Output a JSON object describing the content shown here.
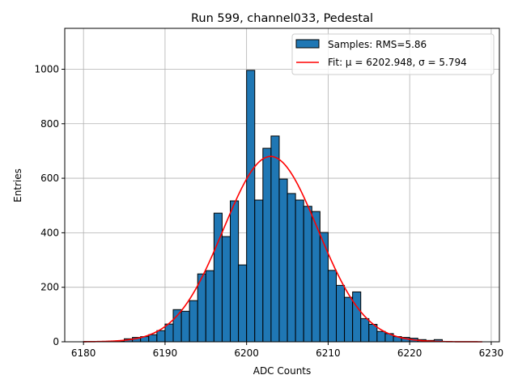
{
  "chart_data": {
    "type": "bar",
    "title": "Run 599, channel033, Pedestal",
    "xlabel": "ADC Counts",
    "ylabel": "Entries",
    "xlim": [
      6177.7,
      6231.0
    ],
    "ylim": [
      0,
      1150
    ],
    "xticks": [
      6180,
      6190,
      6200,
      6210,
      6220,
      6230
    ],
    "yticks": [
      0,
      200,
      400,
      600,
      800,
      1000
    ],
    "grid": true,
    "legend_position": "top-right",
    "bin_width": 1,
    "bins_start": [
      6180,
      6181,
      6182,
      6183,
      6184,
      6185,
      6186,
      6187,
      6188,
      6189,
      6190,
      6191,
      6192,
      6193,
      6194,
      6195,
      6196,
      6197,
      6198,
      6199,
      6200,
      6201,
      6202,
      6203,
      6204,
      6205,
      6206,
      6207,
      6208,
      6209,
      6210,
      6211,
      6212,
      6213,
      6214,
      6215,
      6216,
      6217,
      6218,
      6219,
      6220,
      6221,
      6222,
      6223
    ],
    "values": [
      1,
      1,
      1,
      2,
      3,
      11,
      16,
      19,
      26,
      41,
      65,
      118,
      112,
      151,
      249,
      261,
      472,
      386,
      517,
      282,
      996,
      520,
      710,
      755,
      597,
      544,
      520,
      497,
      478,
      401,
      262,
      207,
      163,
      183,
      85,
      64,
      38,
      30,
      19,
      16,
      13,
      8,
      5,
      8
    ],
    "series": [
      {
        "name": "Samples: RMS=5.86",
        "kind": "histogram",
        "color": "#1f77b4"
      },
      {
        "name": "Fit: μ = 6202.948, σ = 5.794",
        "kind": "gaussian",
        "color": "#ff0000",
        "mu": 6202.948,
        "sigma": 5.794,
        "peak": 680,
        "x_range": [
          6180,
          6229
        ]
      }
    ]
  }
}
